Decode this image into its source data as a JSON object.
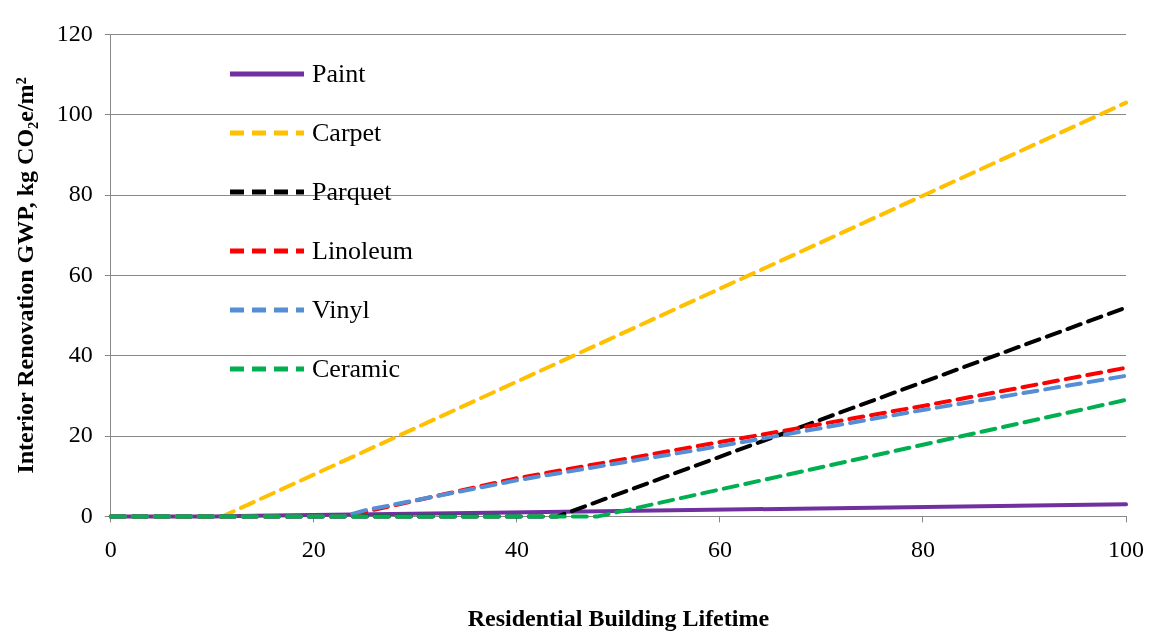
{
  "chart_data": {
    "type": "line",
    "xlabel": "Residential Building Lifetime",
    "ylabel": "Interior Renovation GWP, kg CO₂e/m²",
    "xlim": [
      0,
      100
    ],
    "xticks": [
      0,
      20,
      40,
      60,
      80,
      100
    ],
    "ylim": [
      0,
      120
    ],
    "yticks": [
      0,
      20,
      40,
      60,
      80,
      100,
      120
    ],
    "grid": "y",
    "legend": "top left",
    "marker": "none",
    "series": [
      {
        "name": "Paint",
        "color": "#7030a0",
        "line_style": "solid",
        "x": [
          0,
          10,
          100
        ],
        "values": [
          0,
          0,
          3
        ]
      },
      {
        "name": "Carpet",
        "color": "#ffc000",
        "line_style": "dashed",
        "x": [
          0,
          11,
          100
        ],
        "values": [
          0,
          0,
          103
        ]
      },
      {
        "name": "Parquet",
        "color": "#000000",
        "line_style": "dashed",
        "x": [
          0,
          44,
          100
        ],
        "values": [
          0,
          0,
          52
        ]
      },
      {
        "name": "Linoleum",
        "color": "#ff0000",
        "line_style": "dashed",
        "x": [
          0,
          23,
          40,
          60,
          80,
          100
        ],
        "values": [
          0,
          0,
          9.5,
          18.5,
          27.5,
          37
        ]
      },
      {
        "name": "Vinyl",
        "color": "#558ed5",
        "line_style": "dashed",
        "x": [
          0,
          23,
          25,
          40,
          60,
          80,
          100
        ],
        "values": [
          0,
          0,
          1.5,
          9,
          17.5,
          26.5,
          35
        ]
      },
      {
        "name": "Ceramic",
        "color": "#00b050",
        "line_style": "dashed",
        "x": [
          0,
          48,
          100
        ],
        "values": [
          0,
          0,
          29
        ]
      }
    ]
  }
}
